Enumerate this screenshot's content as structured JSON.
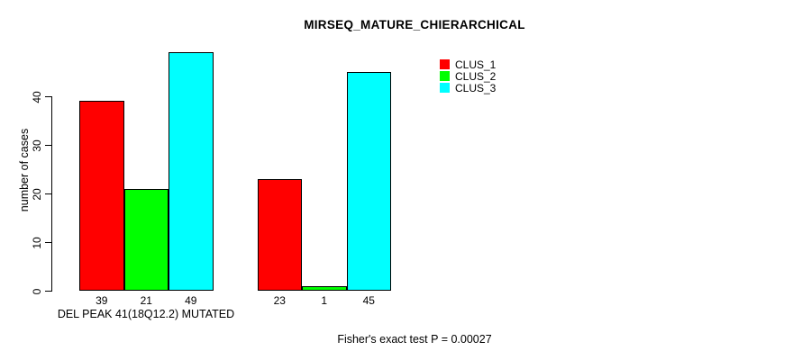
{
  "chart_data": {
    "type": "bar",
    "title": "MIRSEQ_MATURE_CHIERARCHICAL",
    "ylabel": "number of cases",
    "xlabel": "",
    "yticks": [
      0,
      10,
      20,
      30,
      40
    ],
    "ylim": [
      0,
      49
    ],
    "grid": false,
    "legend_position": "top-right-outside",
    "categories": [
      "DEL PEAK 41(18Q12.2) MUTATED",
      ""
    ],
    "series": [
      {
        "name": "CLUS_1",
        "color": "#FF0000",
        "values": [
          39,
          23
        ]
      },
      {
        "name": "CLUS_2",
        "color": "#00FF00",
        "values": [
          21,
          1
        ]
      },
      {
        "name": "CLUS_3",
        "color": "#00FFFF",
        "values": [
          49,
          45
        ]
      }
    ],
    "bar_value_labels": [
      [
        39,
        21,
        49
      ],
      [
        23,
        1,
        45
      ]
    ],
    "annotation": "Fisher's exact test P = 0.00027",
    "axis_color": "#000000",
    "bar_border_color": "#000000",
    "background_color": "#FFFFFF"
  }
}
